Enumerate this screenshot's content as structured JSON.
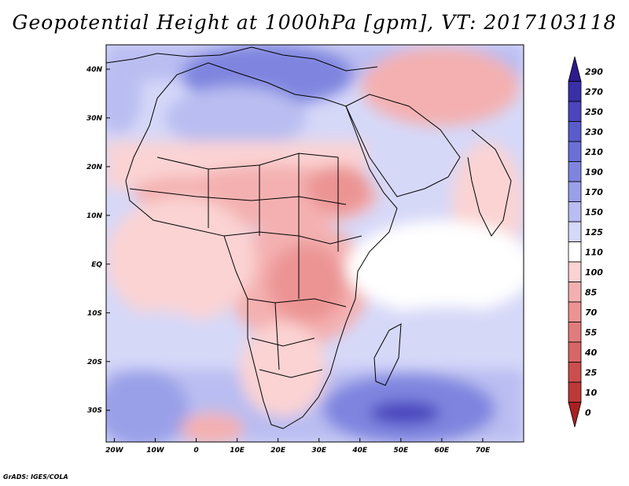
{
  "title": "Geopotential Height at 1000hPa [gpm], VT: 2017103118",
  "credit": "GrADS: IGES/COLA",
  "map": {
    "lat_labels": [
      "40N",
      "30N",
      "20N",
      "10N",
      "EQ",
      "10S",
      "20S",
      "30S"
    ],
    "lat_values": [
      40,
      30,
      20,
      10,
      0,
      -10,
      -20,
      -30
    ],
    "lon_labels": [
      "20W",
      "10W",
      "0",
      "10E",
      "20E",
      "30E",
      "40E",
      "50E",
      "60E",
      "70E"
    ],
    "lon_values": [
      -20,
      -10,
      0,
      10,
      20,
      30,
      40,
      50,
      60,
      70
    ],
    "lon_range": [
      -22,
      80
    ],
    "lat_range": [
      -36.5,
      45
    ]
  },
  "colorbar": {
    "levels": [
      "290",
      "270",
      "250",
      "230",
      "210",
      "190",
      "170",
      "150",
      "125",
      "110",
      "100",
      "85",
      "70",
      "55",
      "40",
      "25",
      "10",
      "0"
    ],
    "colors": [
      "#2d1a8c",
      "#3a2fa6",
      "#4a45bd",
      "#5a5ccc",
      "#6b70d6",
      "#7f85df",
      "#9aa0e8",
      "#b9bdf1",
      "#d6d8f8",
      "#ffffff",
      "#fbd3d3",
      "#f4b0b0",
      "#ec9494",
      "#e27c7c",
      "#d86666",
      "#cc4e4e",
      "#be3838",
      "#a82020"
    ]
  },
  "legend_colors": {
    "cool": "#7f85df",
    "warm": "#ec9494"
  }
}
